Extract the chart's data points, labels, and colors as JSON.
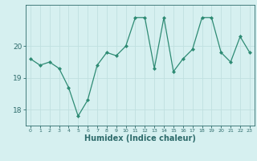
{
  "x": [
    0,
    1,
    2,
    3,
    4,
    5,
    6,
    7,
    8,
    9,
    10,
    11,
    12,
    13,
    14,
    15,
    16,
    17,
    18,
    19,
    20,
    21,
    22,
    23
  ],
  "y": [
    19.6,
    19.4,
    19.5,
    19.3,
    18.7,
    17.8,
    18.3,
    19.4,
    19.8,
    19.7,
    20.0,
    20.9,
    20.9,
    19.3,
    20.9,
    19.2,
    19.6,
    19.9,
    20.9,
    20.9,
    19.8,
    19.5,
    20.3,
    19.8
  ],
  "line_color": "#2e8b74",
  "marker_color": "#2e8b74",
  "bg_color": "#d6f0f0",
  "grid_color": "#c0e0e0",
  "tick_color": "#2e6b6b",
  "xlabel": "Humidex (Indice chaleur)",
  "xlabel_fontsize": 7,
  "yticks": [
    18,
    19,
    20
  ],
  "ylim": [
    17.5,
    21.3
  ],
  "xlim": [
    -0.5,
    23.5
  ]
}
